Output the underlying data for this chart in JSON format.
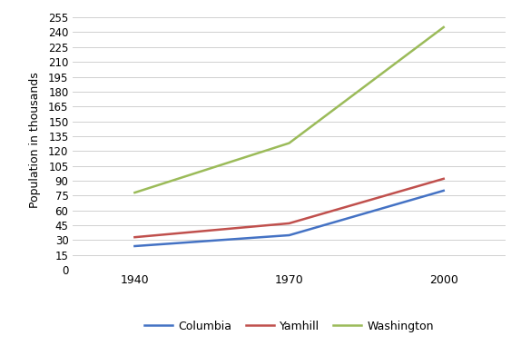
{
  "years": [
    1940,
    1970,
    2000
  ],
  "columbia": [
    24,
    35,
    80
  ],
  "yamhill": [
    33,
    47,
    92
  ],
  "washington": [
    78,
    128,
    245
  ],
  "columbia_color": "#4472C4",
  "yamhill_color": "#C0504D",
  "washington_color": "#9BBB59",
  "ylabel": "Population in thousands",
  "yticks": [
    0,
    15,
    30,
    45,
    60,
    75,
    90,
    105,
    120,
    135,
    150,
    165,
    180,
    195,
    210,
    225,
    240,
    255
  ],
  "xticks": [
    1940,
    1970,
    2000
  ],
  "ylim": [
    0,
    262
  ],
  "xlim": [
    1928,
    2012
  ],
  "background_color": "#ffffff",
  "grid_color": "#d0d0d0",
  "line_width": 1.8,
  "legend_labels": [
    "Columbia",
    "Yamhill",
    "Washington"
  ]
}
